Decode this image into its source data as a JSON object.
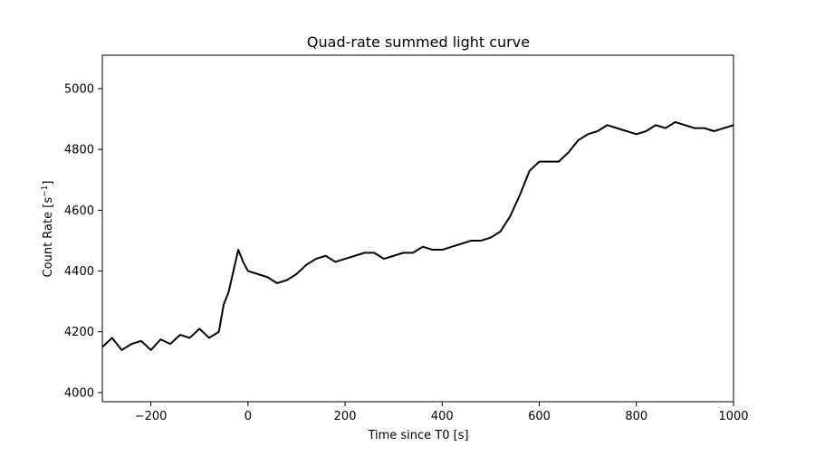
{
  "chart_data": {
    "type": "line",
    "title": "Quad-rate summed light curve",
    "xlabel": "Time since T0 [s]",
    "ylabel_main": "Count Rate [s",
    "ylabel_sup": "−1",
    "ylabel_end": "]",
    "xlim": [
      -300,
      1000
    ],
    "ylim": [
      3970,
      5110
    ],
    "xticks": [
      -200,
      0,
      200,
      400,
      600,
      800,
      1000
    ],
    "xtick_labels": [
      "−200",
      "0",
      "200",
      "400",
      "600",
      "800",
      "1000"
    ],
    "yticks": [
      4000,
      4200,
      4400,
      4600,
      4800,
      5000
    ],
    "ytick_labels": [
      "4000",
      "4200",
      "4400",
      "4600",
      "4800",
      "5000"
    ],
    "grid": false,
    "line_color": "#000000",
    "x": [
      -300,
      -280,
      -260,
      -240,
      -220,
      -200,
      -180,
      -160,
      -140,
      -120,
      -100,
      -80,
      -60,
      -50,
      -40,
      -30,
      -20,
      -10,
      0,
      20,
      40,
      60,
      80,
      100,
      120,
      140,
      160,
      180,
      200,
      220,
      240,
      260,
      280,
      300,
      320,
      340,
      360,
      380,
      400,
      420,
      440,
      460,
      480,
      500,
      520,
      540,
      560,
      580,
      600,
      620,
      640,
      660,
      680,
      700,
      720,
      740,
      760,
      780,
      800,
      820,
      840,
      860,
      880,
      900,
      920,
      940,
      960,
      980,
      1000
    ],
    "values": [
      4150,
      4180,
      4140,
      4160,
      4170,
      4140,
      4175,
      4160,
      4190,
      4180,
      4210,
      4180,
      4200,
      4290,
      4330,
      4400,
      4470,
      4430,
      4400,
      4390,
      4380,
      4360,
      4370,
      4390,
      4420,
      4440,
      4450,
      4430,
      4440,
      4450,
      4460,
      4460,
      4440,
      4450,
      4460,
      4460,
      4480,
      4470,
      4470,
      4480,
      4490,
      4500,
      4500,
      4510,
      4530,
      4580,
      4650,
      4730,
      4760,
      4760,
      4760,
      4790,
      4830,
      4850,
      4860,
      4880,
      4870,
      4860,
      4850,
      4860,
      4880,
      4870,
      4890,
      4880,
      4870,
      4870,
      4860,
      4870,
      4880
    ]
  }
}
